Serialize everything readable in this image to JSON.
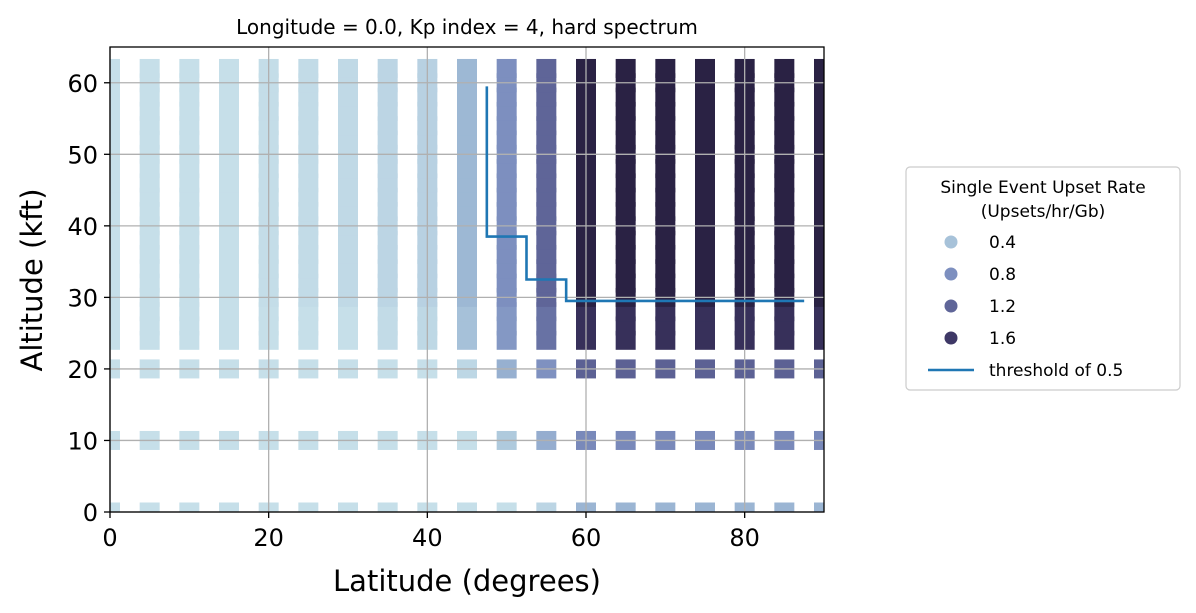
{
  "chart_data": {
    "type": "heatmap",
    "title": "Longitude = 0.0, Kp index = 4, hard spectrum",
    "xlabel": "Latitude (degrees)",
    "ylabel": "Altitude (kft)",
    "xlim": [
      0,
      90
    ],
    "ylim": [
      0,
      65
    ],
    "xticks": [
      0,
      20,
      40,
      60,
      80
    ],
    "yticks": [
      0,
      10,
      20,
      30,
      40,
      50,
      60
    ],
    "grid": true,
    "legend_position": "right, outside plot",
    "legend_title": "Single Event Upset Rate\n(Upsets/hr/Gb)",
    "legend_levels": [
      0.4,
      0.8,
      1.2,
      1.6
    ],
    "legend_line_label": "threshold of 0.5",
    "color_scale": [
      "#c6dfe9",
      "#9db8d4",
      "#7d8fbf",
      "#5f6598",
      "#3e3866",
      "#2a2244"
    ],
    "latitudes": [
      0,
      5,
      10,
      15,
      20,
      25,
      30,
      35,
      40,
      45,
      50,
      55,
      60,
      65,
      70,
      75,
      80,
      85,
      90
    ],
    "altitudes": [
      0,
      10,
      20,
      24,
      26,
      28,
      30,
      32,
      34,
      36,
      38,
      40,
      42,
      44,
      46,
      48,
      50,
      52,
      54,
      56,
      58,
      60,
      62
    ],
    "rate_by_latitude_high_alt": [
      0.25,
      0.25,
      0.25,
      0.25,
      0.26,
      0.27,
      0.28,
      0.3,
      0.32,
      0.45,
      0.8,
      1.2,
      1.9,
      1.9,
      1.9,
      1.9,
      1.9,
      1.9,
      1.9
    ],
    "threshold_line": {
      "label": "threshold of 0.5",
      "points": [
        [
          47.5,
          59.5
        ],
        [
          47.5,
          38.5
        ],
        [
          52.5,
          38.5
        ],
        [
          52.5,
          32.5
        ],
        [
          57.5,
          32.5
        ],
        [
          57.5,
          29.5
        ],
        [
          87.5,
          29.5
        ]
      ]
    }
  },
  "colors": {
    "threshold": "#1f77b4",
    "grid": "#b0b0b0",
    "axis": "#000000"
  }
}
